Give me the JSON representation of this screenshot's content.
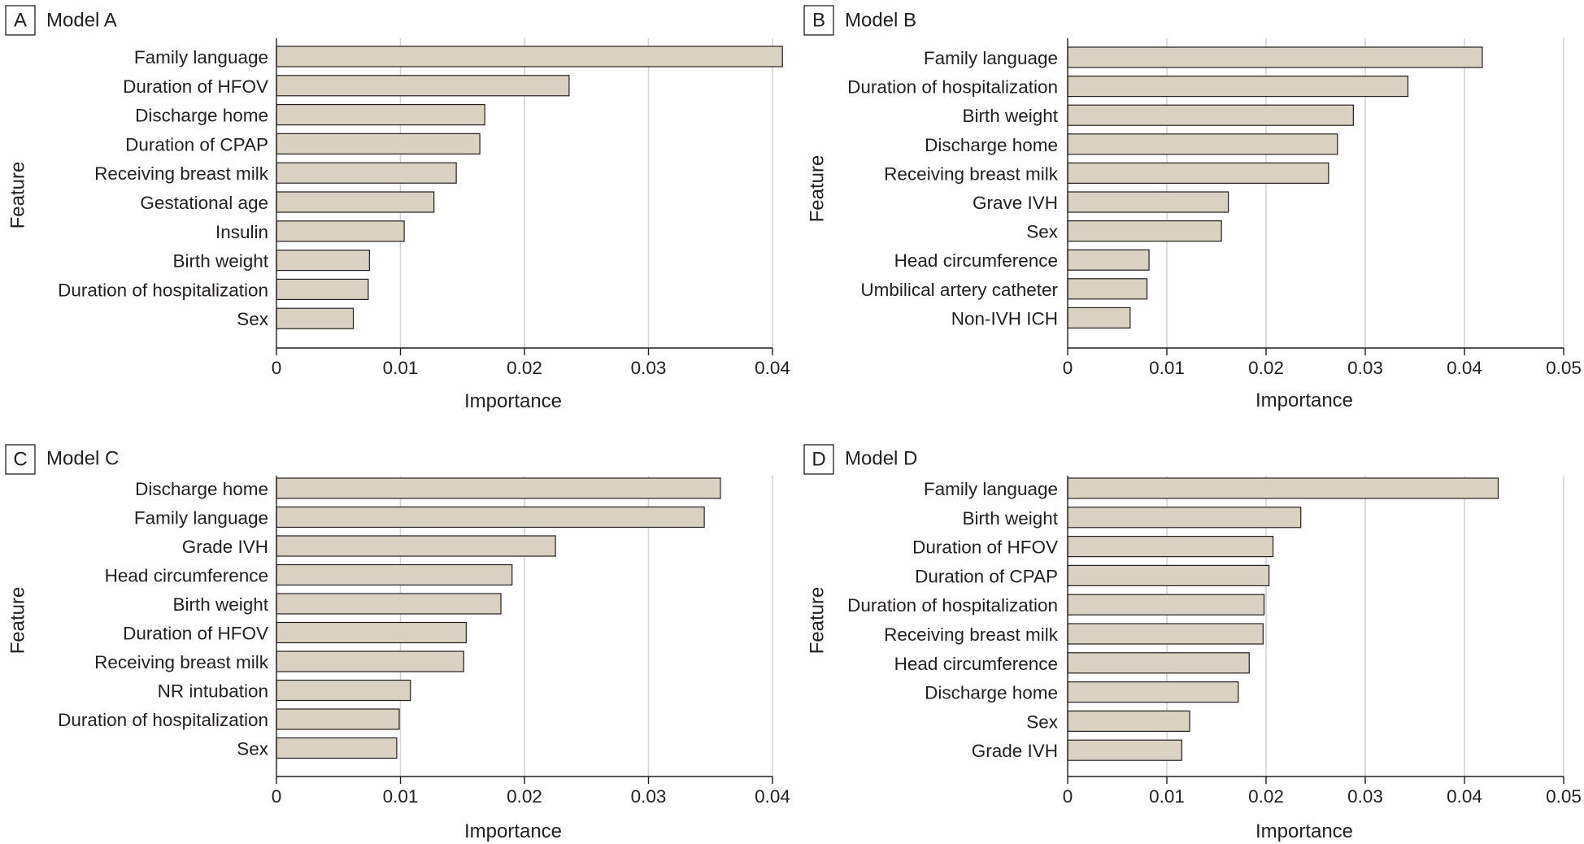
{
  "colors": {
    "bar_fill": "#d9d2c3",
    "bar_stroke": "#231f20",
    "gridline": "#d4d4d4",
    "text": "#231f20"
  },
  "chart_data": [
    {
      "type": "bar",
      "orientation": "horizontal",
      "panel": "A",
      "title": "Model A",
      "xlabel": "Importance",
      "ylabel": "Feature",
      "xlim": [
        0,
        0.04
      ],
      "xticks": [
        "0",
        "0.01",
        "0.02",
        "0.03",
        "0.04"
      ],
      "grid": true,
      "categories": [
        "Family language",
        "Duration of HFOV",
        "Discharge home",
        "Duration of CPAP",
        "Receiving breast milk",
        "Gestational age",
        "Insulin",
        "Birth weight",
        "Duration of hospitalization",
        "Sex"
      ],
      "values": [
        0.0408,
        0.0236,
        0.0168,
        0.0164,
        0.0145,
        0.0127,
        0.0103,
        0.0075,
        0.0074,
        0.0062
      ]
    },
    {
      "type": "bar",
      "orientation": "horizontal",
      "panel": "B",
      "title": "Model B",
      "xlabel": "Importance",
      "ylabel": "Feature",
      "xlim": [
        0,
        0.05
      ],
      "xticks": [
        "0",
        "0.01",
        "0.02",
        "0.03",
        "0.04",
        "0.05"
      ],
      "grid": true,
      "categories": [
        "Family language",
        "Duration of hospitalization",
        "Birth weight",
        "Discharge home",
        "Receiving breast milk",
        "Grave IVH",
        "Sex",
        "Head circumference",
        "Umbilical artery catheter",
        "Non-IVH ICH"
      ],
      "values": [
        0.0418,
        0.0343,
        0.0288,
        0.0272,
        0.0263,
        0.0162,
        0.0155,
        0.0082,
        0.008,
        0.0063
      ]
    },
    {
      "type": "bar",
      "orientation": "horizontal",
      "panel": "C",
      "title": "Model C",
      "xlabel": "Importance",
      "ylabel": "Feature",
      "xlim": [
        0,
        0.04
      ],
      "xticks": [
        "0",
        "0.01",
        "0.02",
        "0.03",
        "0.04"
      ],
      "grid": true,
      "categories": [
        "Discharge home",
        "Family language",
        "Grade IVH",
        "Head circumference",
        "Birth weight",
        "Duration of HFOV",
        "Receiving breast milk",
        "NR intubation",
        "Duration of hospitalization",
        "Sex"
      ],
      "values": [
        0.0358,
        0.0345,
        0.0225,
        0.019,
        0.0181,
        0.0153,
        0.0151,
        0.0108,
        0.0099,
        0.0097
      ]
    },
    {
      "type": "bar",
      "orientation": "horizontal",
      "panel": "D",
      "title": "Model D",
      "xlabel": "Importance",
      "ylabel": "Feature",
      "xlim": [
        0,
        0.05
      ],
      "xticks": [
        "0",
        "0.01",
        "0.02",
        "0.03",
        "0.04",
        "0.05"
      ],
      "grid": true,
      "categories": [
        "Family language",
        "Birth weight",
        "Duration of HFOV",
        "Duration of CPAP",
        "Duration of hospitalization",
        "Receiving breast milk",
        "Head circumference",
        "Discharge home",
        "Sex",
        "Grade IVH"
      ],
      "values": [
        0.0434,
        0.0235,
        0.0207,
        0.0203,
        0.0198,
        0.0197,
        0.0183,
        0.0172,
        0.0123,
        0.0115
      ]
    }
  ]
}
